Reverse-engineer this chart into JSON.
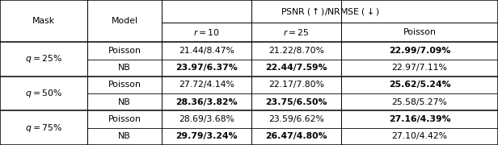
{
  "col_headers_row1": [
    "Mask",
    "Model",
    "PSNR (↑)/NRMSE (↓)"
  ],
  "col_headers_row2": [
    "",
    "",
    "r = 10",
    "r = 25",
    "Poisson"
  ],
  "row_groups": [
    {
      "mask": "q = 25%",
      "rows": [
        {
          "model": "Poisson",
          "r10": "21.44/8.47%",
          "r25": "21.22/8.70%",
          "poisson": "22.99/7.09%",
          "bold": [
            false,
            false,
            true
          ]
        },
        {
          "model": "NB",
          "r10": "23.97/6.37%",
          "r25": "22.44/7.59%",
          "poisson": "22.97/7.11%",
          "bold": [
            true,
            true,
            false
          ]
        }
      ]
    },
    {
      "mask": "q = 50%",
      "rows": [
        {
          "model": "Poisson",
          "r10": "27.72/4.14%",
          "r25": "22.17/7.80%",
          "poisson": "25.62/5.24%",
          "bold": [
            false,
            false,
            true
          ]
        },
        {
          "model": "NB",
          "r10": "28.36/3.82%",
          "r25": "23.75/6.50%",
          "poisson": "25.58/5.27%",
          "bold": [
            true,
            true,
            false
          ]
        }
      ]
    },
    {
      "mask": "q = 75%",
      "rows": [
        {
          "model": "Poisson",
          "r10": "28.69/3.68%",
          "r25": "23.59/6.62%",
          "poisson": "27.16/4.39%",
          "bold": [
            false,
            false,
            true
          ]
        },
        {
          "model": "NB",
          "r10": "29.79/3.24%",
          "r25": "26.47/4.80%",
          "poisson": "27.10/4.42%",
          "bold": [
            true,
            true,
            false
          ]
        }
      ]
    }
  ],
  "figsize": [
    6.16,
    1.8
  ],
  "dpi": 100,
  "background_color": "#ffffff",
  "line_color": "#000000",
  "font_size": 7.8
}
